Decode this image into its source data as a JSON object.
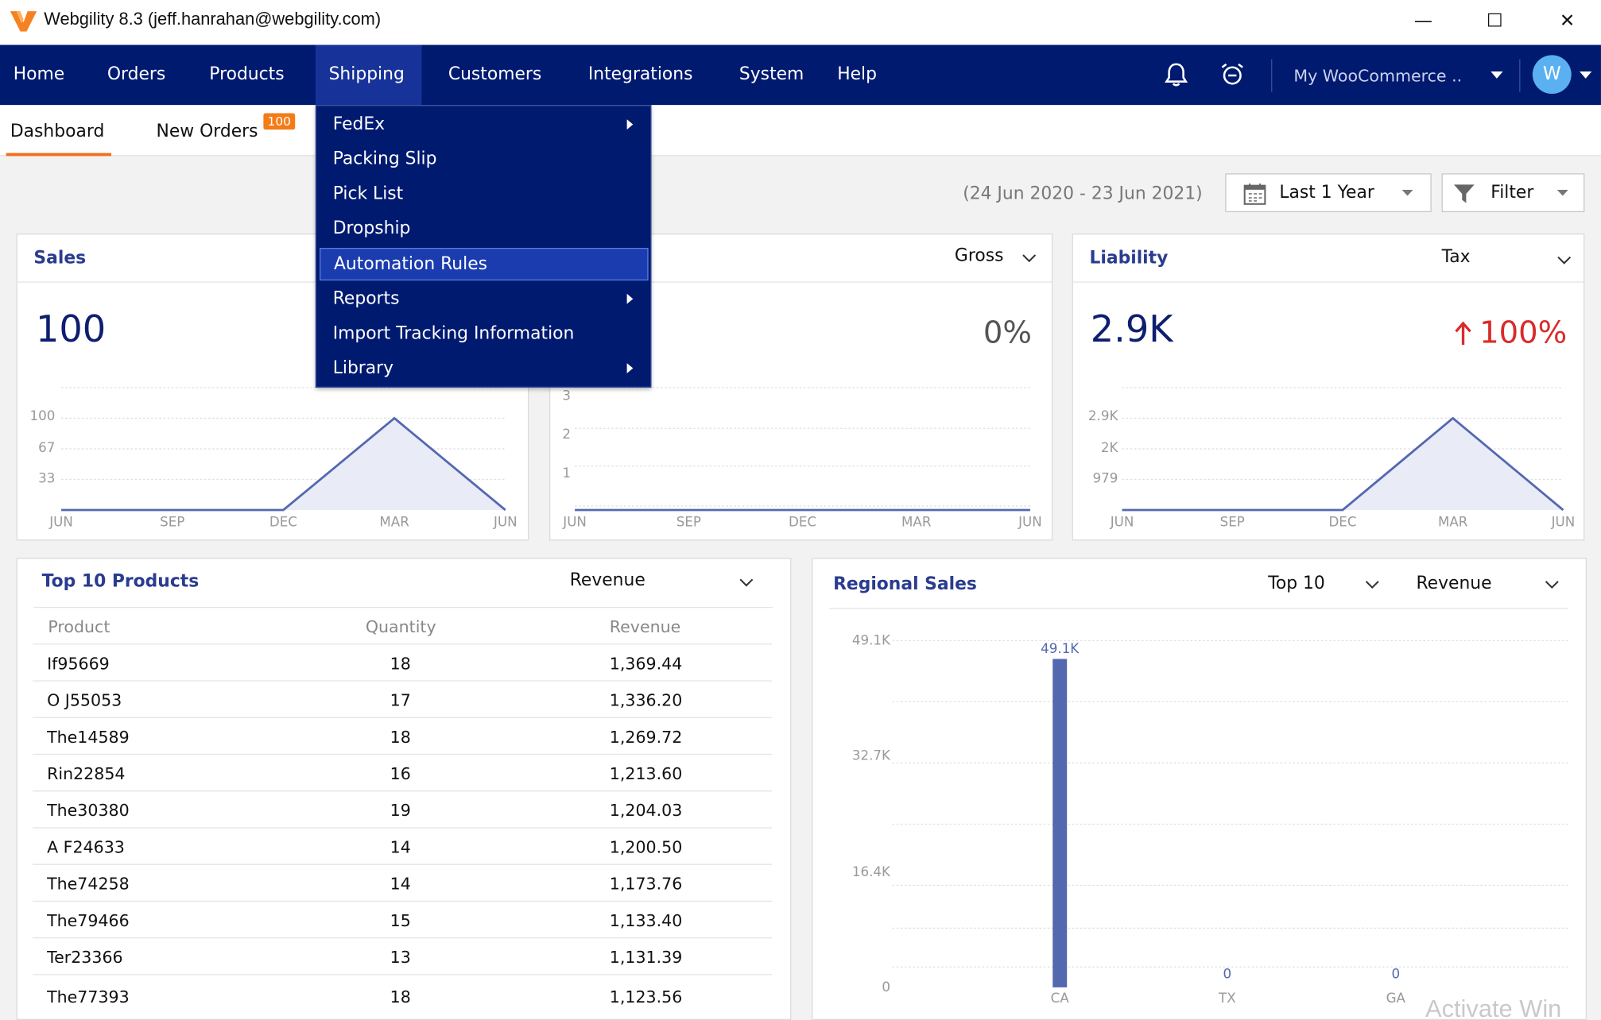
{
  "window": {
    "title": "Webgility 8.3 (jeff.hanrahan@webgility.com)",
    "minimize": "—",
    "maximize": "☐",
    "close": "✕"
  },
  "nav": {
    "items": [
      "Home",
      "Orders",
      "Products",
      "Shipping",
      "Customers",
      "Integrations",
      "System",
      "Help"
    ],
    "active": "Shipping",
    "store": "My WooCommerce ..",
    "avatar": "W"
  },
  "tabs": {
    "dashboard": "Dashboard",
    "new_orders": "New Orders",
    "new_orders_badge": "100"
  },
  "shipping_menu": {
    "items": [
      {
        "label": "FedEx",
        "submenu": true
      },
      {
        "label": "Packing Slip",
        "submenu": false
      },
      {
        "label": "Pick List",
        "submenu": false
      },
      {
        "label": "Dropship",
        "submenu": false
      },
      {
        "label": "Automation Rules",
        "submenu": false,
        "highlighted": true
      },
      {
        "label": "Reports",
        "submenu": true
      },
      {
        "label": "Import Tracking Information",
        "submenu": false
      },
      {
        "label": "Library",
        "submenu": true
      }
    ]
  },
  "filters": {
    "date_range": "(24 Jun 2020 - 23 Jun 2021)",
    "period": "Last 1 Year",
    "filter": "Filter"
  },
  "sales_card": {
    "title": "Sales",
    "value": "100"
  },
  "profit_card": {
    "select": "Gross",
    "change": "0%"
  },
  "liability_card": {
    "title": "Liability",
    "select": "Tax",
    "value": "2.9K",
    "change": "100%"
  },
  "top_products": {
    "title": "Top 10 Products",
    "select": "Revenue",
    "columns": [
      "Product",
      "Quantity",
      "Revenue"
    ],
    "rows": [
      [
        "If95669",
        "18",
        "1,369.44"
      ],
      [
        "O J55053",
        "17",
        "1,336.20"
      ],
      [
        "The14589",
        "18",
        "1,269.72"
      ],
      [
        "Rin22854",
        "16",
        "1,213.60"
      ],
      [
        "The30380",
        "19",
        "1,204.03"
      ],
      [
        "A F24633",
        "14",
        "1,200.50"
      ],
      [
        "The74258",
        "14",
        "1,173.76"
      ],
      [
        "The79466",
        "15",
        "1,133.40"
      ],
      [
        "Ter23366",
        "13",
        "1,131.39"
      ],
      [
        "The77393",
        "18",
        "1,123.56"
      ]
    ]
  },
  "regional_sales": {
    "title": "Regional Sales",
    "select_top": "Top 10",
    "select_metric": "Revenue"
  },
  "watermark": "Activate Win",
  "colors": {
    "nav_bg": "#001a70",
    "accent": "#f07020",
    "series": "#5468b0",
    "up": "#d92b2b"
  },
  "chart_data": [
    {
      "type": "area",
      "title": "Sales",
      "x": [
        "JUN",
        "SEP",
        "DEC",
        "MAR",
        "JUN"
      ],
      "y": [
        0,
        0,
        0,
        100,
        0
      ],
      "yticks": [
        "100",
        "67",
        "33"
      ],
      "ylim": [
        0,
        100
      ]
    },
    {
      "type": "area",
      "title": "",
      "x": [
        "JUN",
        "SEP",
        "DEC",
        "MAR",
        "JUN"
      ],
      "y": [
        0,
        0,
        0,
        0,
        0
      ],
      "yticks": [
        "3",
        "2",
        "1"
      ],
      "ylim": [
        0,
        3
      ]
    },
    {
      "type": "area",
      "title": "Liability",
      "x": [
        "JUN",
        "SEP",
        "DEC",
        "MAR",
        "JUN"
      ],
      "y": [
        0,
        0,
        0,
        2900,
        0
      ],
      "yticks": [
        "2.9K",
        "2K",
        "979"
      ],
      "ylim": [
        0,
        2900
      ]
    },
    {
      "type": "bar",
      "title": "Regional Sales",
      "categories": [
        "CA",
        "TX",
        "GA"
      ],
      "values": [
        49100,
        0,
        0
      ],
      "labels": [
        "49.1K",
        "0",
        "0"
      ],
      "yticks": [
        "49.1K",
        "32.7K",
        "16.4K",
        "0"
      ],
      "ylim": [
        0,
        49100
      ]
    }
  ]
}
